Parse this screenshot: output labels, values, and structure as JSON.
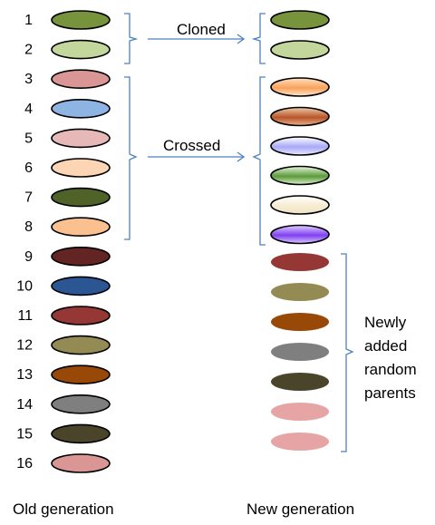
{
  "old_generation": {
    "caption": "Old generation",
    "items": [
      {
        "num": "1",
        "color": "#77933c"
      },
      {
        "num": "2",
        "color": "#c3d69b"
      },
      {
        "num": "3",
        "color": "#d99694"
      },
      {
        "num": "4",
        "color": "#8eb4e3"
      },
      {
        "num": "5",
        "color": "#e6b9b8"
      },
      {
        "num": "6",
        "color": "#fcd5b5"
      },
      {
        "num": "7",
        "color": "#4f6228"
      },
      {
        "num": "8",
        "color": "#fac090"
      },
      {
        "num": "9",
        "color": "#632523"
      },
      {
        "num": "10",
        "color": "#2c5594"
      },
      {
        "num": "11",
        "color": "#953735"
      },
      {
        "num": "12",
        "color": "#948a54"
      },
      {
        "num": "13",
        "color": "#984807"
      },
      {
        "num": "14",
        "color": "#7f7f7f"
      },
      {
        "num": "15",
        "color": "#4a452a"
      },
      {
        "num": "16",
        "color": "#d99694"
      }
    ]
  },
  "new_generation": {
    "caption": "New generation",
    "cloned": [
      {
        "color": "#77933c"
      },
      {
        "color": "#c3d69b"
      }
    ],
    "crossed": [
      {
        "top": "#ffe0c0",
        "mid": "#f9a25c",
        "bottom": "#fce6d0"
      },
      {
        "top": "#f0c8a8",
        "mid": "#b8562a",
        "bottom": "#e8b08c"
      },
      {
        "top": "#ffffff",
        "mid": "#a8a8f8",
        "bottom": "#e8e8ff"
      },
      {
        "top": "#e8f4dc",
        "mid": "#5a9a3a",
        "bottom": "#dcefcc"
      },
      {
        "top": "#ffffff",
        "mid": "#f6ecd2",
        "bottom": "#efe4c4"
      },
      {
        "top": "#e0d0ff",
        "mid": "#8040f0",
        "bottom": "#d8c8ff"
      }
    ],
    "random": [
      {
        "color": "#953735"
      },
      {
        "color": "#948a54"
      },
      {
        "color": "#984807"
      },
      {
        "color": "#7f7f7f"
      },
      {
        "color": "#4a452a"
      },
      {
        "color": "#e6a5a4"
      },
      {
        "color": "#e6a5a4"
      }
    ]
  },
  "labels": {
    "cloned": "Cloned",
    "crossed": "Crossed",
    "newly_added_lines": [
      "Newly",
      "added",
      "random",
      "parents"
    ]
  }
}
